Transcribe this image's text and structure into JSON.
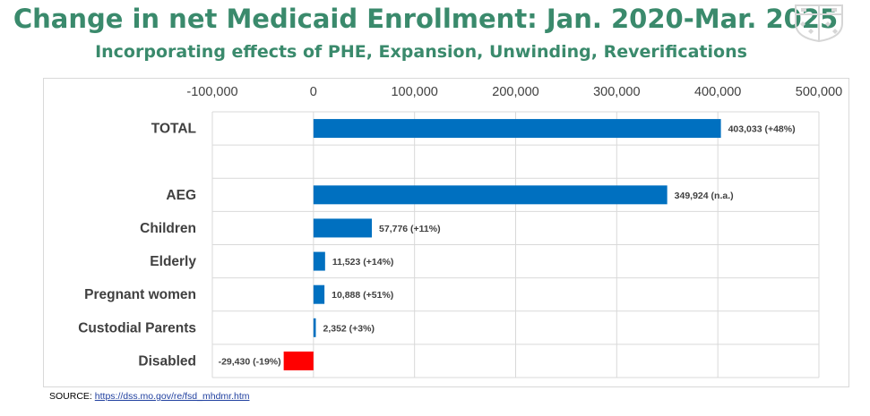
{
  "title": "Change in net Medicaid Enrollment: Jan. 2020-Mar. 2025",
  "subtitle": "Incorporating effects of PHE, Expansion, Unwinding, Reverifications",
  "source": {
    "label": "SOURCE:",
    "link_text": "https://dss.mo.gov/re/fsd_mhdmr.htm"
  },
  "chart_data": {
    "type": "bar",
    "orientation": "horizontal",
    "title": "Change in net Medicaid Enrollment: Jan. 2020-Mar. 2025",
    "subtitle": "Incorporating effects of PHE, Expansion, Unwinding, Reverifications",
    "xlim": [
      -100000,
      500000
    ],
    "x_ticks": [
      -100000,
      0,
      100000,
      200000,
      300000,
      400000,
      500000
    ],
    "x_tick_labels": [
      "-100,000",
      "0",
      "100,000",
      "200,000",
      "300,000",
      "400,000",
      "500,000"
    ],
    "x_axis_position": "top",
    "grid": true,
    "categories": [
      "TOTAL",
      "",
      "AEG",
      "Children",
      "Elderly",
      "Pregnant women",
      "Custodial Parents",
      "Disabled"
    ],
    "values": [
      403033,
      null,
      349924,
      57776,
      11523,
      10888,
      2352,
      -29430
    ],
    "data_labels": [
      "403,033 (+48%)",
      "",
      "349,924 (n.a.)",
      "57,776 (+11%)",
      "11,523  (+14%)",
      "10,888 (+51%)",
      "2,352 (+3%)",
      "-29,430 (-19%)"
    ],
    "colors": {
      "positive": "#0070c0",
      "negative": "#ff0000",
      "grid": "#d9d9d9",
      "title": "#3a8a6c"
    }
  }
}
